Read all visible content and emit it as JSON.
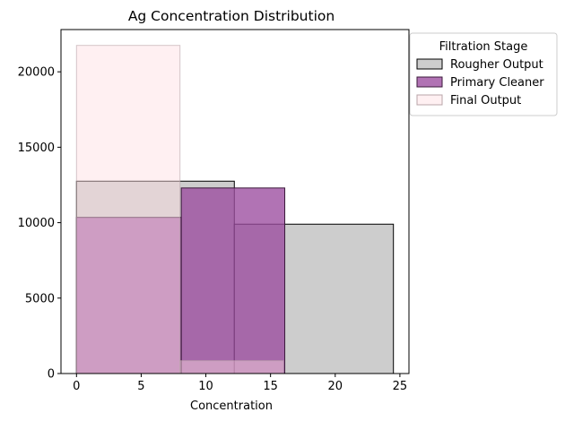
{
  "chart_data": {
    "type": "bar",
    "title": "Ag Concentration Distribution",
    "xlabel": "Concentration",
    "ylabel": "",
    "xlim": [
      -1.2,
      25.7
    ],
    "ylim": [
      0,
      22800
    ],
    "xticks": [
      0,
      5,
      10,
      15,
      20,
      25
    ],
    "yticks": [
      0,
      5000,
      10000,
      15000,
      20000
    ],
    "grid": false,
    "legend": {
      "title": "Filtration Stage",
      "placement": "outside-top-right"
    },
    "series": [
      {
        "name": "Rougher Output",
        "color": "#bfbfbf",
        "edgecolor": "#000000",
        "bins": [
          {
            "x0": 0,
            "x1": 12.2,
            "count": 12750
          },
          {
            "x0": 12.2,
            "x1": 24.5,
            "count": 9900
          }
        ]
      },
      {
        "name": "Primary Cleaner",
        "color": "#9b4b9f",
        "edgecolor": "#3a1a3a",
        "bins": [
          {
            "x0": 0,
            "x1": 8.1,
            "count": 10350
          },
          {
            "x0": 8.1,
            "x1": 16.1,
            "count": 12300
          }
        ]
      },
      {
        "name": "Final Output",
        "color": "#ffdde3",
        "edgecolor": "#b8a4a8",
        "bins": [
          {
            "x0": 0,
            "x1": 8.0,
            "count": 21750
          },
          {
            "x0": 8.0,
            "x1": 16.0,
            "count": 850
          }
        ]
      }
    ]
  }
}
